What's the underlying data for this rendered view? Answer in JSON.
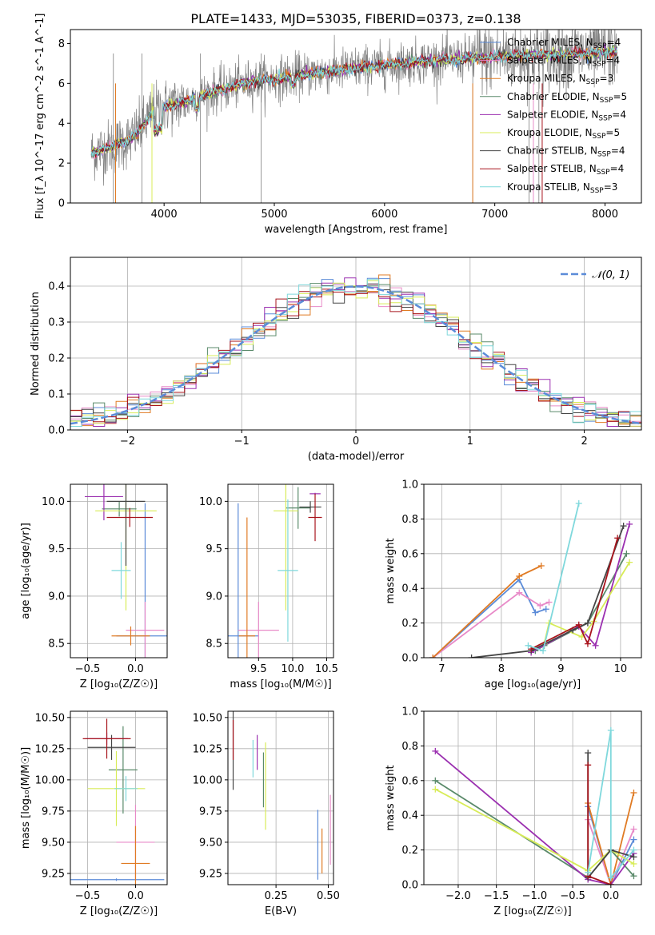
{
  "figure": {
    "title": "PLATE=1433, MJD=53035, FIBERID=0373, z=0.138"
  },
  "colors": {
    "data": "#808080",
    "grid": "#b0b0b0"
  },
  "series_legend": [
    {
      "base": "Chabrier MILES, N",
      "sub": "SSP",
      "tail": "=4",
      "color": "#5b8bd8"
    },
    {
      "base": "Salpeter MILES, N",
      "sub": "SSP",
      "tail": "=4",
      "color": "#e88ac8"
    },
    {
      "base": "Kroupa MILES, N",
      "sub": "SSP",
      "tail": "=3",
      "color": "#e07b24"
    },
    {
      "base": "Chabrier ELODIE, N",
      "sub": "SSP",
      "tail": "=5",
      "color": "#5a8a6a"
    },
    {
      "base": "Salpeter ELODIE, N",
      "sub": "SSP",
      "tail": "=4",
      "color": "#9b30b0"
    },
    {
      "base": "Kroupa ELODIE, N",
      "sub": "SSP",
      "tail": "=5",
      "color": "#d8ec58"
    },
    {
      "base": "Chabrier STELIB, N",
      "sub": "SSP",
      "tail": "=4",
      "color": "#454545"
    },
    {
      "base": "Salpeter STELIB, N",
      "sub": "SSP",
      "tail": "=4",
      "color": "#a8141c"
    },
    {
      "base": "Kroupa STELIB, N",
      "sub": "SSP",
      "tail": "=3",
      "color": "#7fd8dc"
    }
  ],
  "chart_data": [
    {
      "id": "spectrum",
      "type": "line",
      "title": "PLATE=1433, MJD=53035, FIBERID=0373, z=0.138",
      "xlabel": "wavelength [Angstrom, rest frame]",
      "ylabel": "Flux [f_λ 10^-17 erg cm^-2 s^-1 A^-1]",
      "xlim": [
        3150,
        8330
      ],
      "ylim": [
        0,
        8.7
      ],
      "xticks": [
        4000,
        5000,
        6000,
        7000,
        8000
      ],
      "yticks": [
        0,
        2,
        4,
        6,
        8
      ],
      "continuum": {
        "x": [
          3340,
          3450,
          3560,
          3700,
          3800,
          3900,
          4000,
          4200,
          4400,
          4600,
          4800,
          5000,
          5200,
          5500,
          5800,
          6000,
          6300,
          6600,
          6900,
          7200,
          7500,
          7800,
          8000,
          8100
        ],
        "y": [
          2.5,
          2.7,
          2.9,
          3.2,
          3.8,
          4.6,
          4.8,
          5.1,
          5.5,
          5.8,
          6.1,
          6.2,
          6.4,
          6.6,
          6.8,
          6.9,
          7.1,
          7.2,
          7.3,
          7.4,
          7.45,
          7.5,
          7.55,
          7.6
        ]
      },
      "grid": false,
      "legend": "upper right"
    },
    {
      "id": "residuals",
      "type": "histogram",
      "xlabel": "(data-model)/error",
      "ylabel": "Normed distribution",
      "xlim": [
        -2.5,
        2.5
      ],
      "ylim": [
        0,
        0.48
      ],
      "xticks": [
        -2,
        -1,
        0,
        1,
        2
      ],
      "yticks": [
        0.0,
        0.1,
        0.2,
        0.3,
        0.4
      ],
      "bin_width": 0.1,
      "reference_curve": {
        "name": "𝒩(0, 1)",
        "mean": 0,
        "sigma": 1,
        "color": "#5b8bd8"
      },
      "grid": true,
      "legend": "upper right"
    },
    {
      "id": "age-vs-Z",
      "type": "errorbar",
      "xlabel": "Z [log₁₀(Z/Z☉)]",
      "ylabel": "age  [log₁₀(age/yr)]",
      "xlim": [
        -0.68,
        0.33
      ],
      "ylim": [
        8.35,
        10.18
      ],
      "xticks": [
        -0.5,
        0.0
      ],
      "yticks": [
        8.5,
        9.0,
        9.5,
        10.0
      ],
      "points": [
        {
          "x": 0.1,
          "xerr": 0.3,
          "y": 8.58,
          "yerr": 1.4,
          "color": "#5b8bd8"
        },
        {
          "x": 0.1,
          "xerr": 0.2,
          "y": 8.64,
          "yerr": 0.3,
          "color": "#e88ac8"
        },
        {
          "x": -0.05,
          "xerr": 0.2,
          "y": 8.58,
          "yerr": 0.1,
          "color": "#e07b24"
        },
        {
          "x": -0.17,
          "xerr": 0.18,
          "y": 9.92,
          "yerr": 0.08,
          "color": "#5a8a6a"
        },
        {
          "x": -0.33,
          "xerr": 0.2,
          "y": 10.05,
          "yerr": 0.25,
          "color": "#9b30b0"
        },
        {
          "x": -0.1,
          "xerr": 0.32,
          "y": 9.9,
          "yerr": 1.05,
          "color": "#d8ec58"
        },
        {
          "x": -0.1,
          "xerr": 0.2,
          "y": 10.0,
          "yerr": 0.68,
          "color": "#454545"
        },
        {
          "x": -0.06,
          "xerr": 0.24,
          "y": 9.83,
          "yerr": 0.1,
          "color": "#a8141c"
        },
        {
          "x": -0.15,
          "xerr": 0.1,
          "y": 9.27,
          "yerr": 0.3,
          "color": "#7fd8dc"
        }
      ],
      "grid": true
    },
    {
      "id": "age-vs-mass",
      "type": "errorbar",
      "xlabel": "mass [log₁₀(M/M☉)]",
      "ylabel": "",
      "xlim": [
        9.05,
        10.6
      ],
      "ylim": [
        8.35,
        10.18
      ],
      "xticks": [
        9.5,
        10.0,
        10.5
      ],
      "yticks": [
        8.5,
        9.0,
        9.5,
        10.0
      ],
      "points": [
        {
          "x": 9.2,
          "xerr": 0.3,
          "y": 8.58,
          "yerr": 1.4,
          "color": "#5b8bd8"
        },
        {
          "x": 9.5,
          "xerr": 0.3,
          "y": 8.64,
          "yerr": 0.3,
          "color": "#e88ac8"
        },
        {
          "x": 9.33,
          "xerr": 0.12,
          "y": 8.58,
          "yerr": 1.25,
          "color": "#e07b24"
        },
        {
          "x": 10.08,
          "xerr": 0.18,
          "y": 9.93,
          "yerr": 0.22,
          "color": "#5a8a6a"
        },
        {
          "x": 10.33,
          "xerr": 0.08,
          "y": 10.08,
          "yerr": 0.01,
          "color": "#9b30b0"
        },
        {
          "x": 9.9,
          "xerr": 0.18,
          "y": 9.9,
          "yerr": 1.05,
          "color": "#d8ec58"
        },
        {
          "x": 10.26,
          "xerr": 0.16,
          "y": 9.94,
          "yerr": 0.06,
          "color": "#454545"
        },
        {
          "x": 10.33,
          "xerr": 0.1,
          "y": 9.83,
          "yerr": 0.25,
          "color": "#a8141c"
        },
        {
          "x": 9.93,
          "xerr": 0.15,
          "y": 9.27,
          "yerr": 0.75,
          "color": "#7fd8dc"
        }
      ],
      "grid": true
    },
    {
      "id": "weight-vs-age",
      "type": "line",
      "xlabel": "age  [log₁₀(age/yr)]",
      "ylabel": "mass weight",
      "xlim": [
        6.7,
        10.35
      ],
      "ylim": [
        0,
        1.0
      ],
      "xticks": [
        7,
        8,
        9,
        10
      ],
      "yticks": [
        0.0,
        0.2,
        0.4,
        0.6,
        0.8,
        1.0
      ],
      "series": [
        {
          "color": "#5b8bd8",
          "x": [
            6.85,
            8.3,
            8.57,
            8.75
          ],
          "y": [
            0.0,
            0.45,
            0.26,
            0.28
          ]
        },
        {
          "color": "#e88ac8",
          "x": [
            6.85,
            8.3,
            8.65,
            8.8
          ],
          "y": [
            0.0,
            0.375,
            0.3,
            0.32
          ]
        },
        {
          "color": "#e07b24",
          "x": [
            6.85,
            8.3,
            8.67
          ],
          "y": [
            0.0,
            0.47,
            0.53
          ]
        },
        {
          "color": "#5a8a6a",
          "x": [
            8.57,
            8.72,
            9.45,
            10.1
          ],
          "y": [
            0.04,
            0.07,
            0.2,
            0.6
          ]
        },
        {
          "color": "#9b30b0",
          "x": [
            8.5,
            9.3,
            9.58,
            10.15
          ],
          "y": [
            0.03,
            0.18,
            0.07,
            0.77
          ]
        },
        {
          "color": "#d8ec58",
          "x": [
            8.72,
            8.8,
            9.35,
            9.55,
            10.15
          ],
          "y": [
            0.08,
            0.2,
            0.12,
            0.21,
            0.55
          ]
        },
        {
          "color": "#454545",
          "x": [
            7.5,
            8.5,
            9.2,
            9.45,
            10.05
          ],
          "y": [
            0.0,
            0.04,
            0.16,
            0.2,
            0.76
          ]
        },
        {
          "color": "#a8141c",
          "x": [
            8.5,
            9.3,
            9.45,
            9.95
          ],
          "y": [
            0.05,
            0.19,
            0.08,
            0.69
          ]
        },
        {
          "color": "#7fd8dc",
          "x": [
            8.45,
            8.7,
            9.3
          ],
          "y": [
            0.07,
            0.04,
            0.89
          ]
        }
      ],
      "grid": true
    },
    {
      "id": "mass-vs-Z",
      "type": "errorbar",
      "xlabel": "Z [log₁₀(Z/Z☉)]",
      "ylabel": "mass [log₁₀(M/M☉)]",
      "xlim": [
        -0.68,
        0.33
      ],
      "ylim": [
        9.16,
        10.55
      ],
      "xticks": [
        -0.5,
        0.0
      ],
      "yticks": [
        9.25,
        9.5,
        9.75,
        10.0,
        10.25,
        10.5
      ],
      "points": [
        {
          "x": -0.2,
          "xerr": 0.5,
          "y": 9.2,
          "yerr": 0.01,
          "color": "#5b8bd8"
        },
        {
          "x": 0.0,
          "xerr": 0.2,
          "y": 9.5,
          "yerr": 0.3,
          "color": "#e88ac8"
        },
        {
          "x": 0.0,
          "xerr": 0.15,
          "y": 9.33,
          "yerr": 0.3,
          "color": "#e07b24"
        },
        {
          "x": -0.13,
          "xerr": 0.15,
          "y": 10.08,
          "yerr": 0.35,
          "color": "#5a8a6a"
        },
        {
          "x": -0.3,
          "xerr": 0.22,
          "y": 10.33,
          "yerr": 0.05,
          "color": "#9b30b0"
        },
        {
          "x": -0.2,
          "xerr": 0.3,
          "y": 9.93,
          "yerr": 0.3,
          "color": "#d8ec58"
        },
        {
          "x": -0.25,
          "xerr": 0.25,
          "y": 10.26,
          "yerr": 0.1,
          "color": "#454545"
        },
        {
          "x": -0.3,
          "xerr": 0.25,
          "y": 10.33,
          "yerr": 0.16,
          "color": "#a8141c"
        },
        {
          "x": -0.1,
          "xerr": 0.12,
          "y": 9.93,
          "yerr": 0.1,
          "color": "#7fd8dc"
        }
      ],
      "grid": true
    },
    {
      "id": "mass-vs-EBV",
      "type": "errorbar",
      "xlabel": "E(B-V)",
      "ylabel": "",
      "xlim": [
        0.02,
        0.525
      ],
      "ylim": [
        9.16,
        10.55
      ],
      "xticks": [
        0.25,
        0.5
      ],
      "yticks": [
        9.25,
        9.5,
        9.75,
        10.0,
        10.25,
        10.5
      ],
      "points": [
        {
          "x": 0.45,
          "xerr": 0.0,
          "y": 9.48,
          "yerr": 0.28,
          "color": "#5b8bd8"
        },
        {
          "x": 0.51,
          "xerr": 0.0,
          "y": 9.6,
          "yerr": 0.28,
          "color": "#e88ac8"
        },
        {
          "x": 0.47,
          "xerr": 0.0,
          "y": 9.43,
          "yerr": 0.18,
          "color": "#e07b24"
        },
        {
          "x": 0.19,
          "xerr": 0.0,
          "y": 10.0,
          "yerr": 0.22,
          "color": "#5a8a6a"
        },
        {
          "x": 0.16,
          "xerr": 0.0,
          "y": 10.22,
          "yerr": 0.14,
          "color": "#9b30b0"
        },
        {
          "x": 0.2,
          "xerr": 0.0,
          "y": 9.95,
          "yerr": 0.35,
          "color": "#d8ec58"
        },
        {
          "x": 0.045,
          "xerr": 0.0,
          "y": 10.25,
          "yerr": 0.33,
          "color": "#454545"
        },
        {
          "x": 0.045,
          "xerr": 0.0,
          "y": 10.32,
          "yerr": 0.16,
          "color": "#a8141c"
        },
        {
          "x": 0.14,
          "xerr": 0.0,
          "y": 10.17,
          "yerr": 0.15,
          "color": "#7fd8dc"
        }
      ],
      "grid": true
    },
    {
      "id": "weight-vs-Z",
      "type": "line",
      "xlabel": "Z [log₁₀(Z/Z☉)]",
      "ylabel": "mass weight",
      "xlim": [
        -2.45,
        0.4
      ],
      "ylim": [
        0,
        1.0
      ],
      "xticks": [
        -2.0,
        -1.5,
        -1.0,
        -0.5,
        0.0
      ],
      "yticks": [
        0.0,
        0.2,
        0.4,
        0.6,
        0.8,
        1.0
      ],
      "series": [
        {
          "color": "#5b8bd8",
          "x": [
            -0.3,
            0.0,
            0.3
          ],
          "y": [
            0.45,
            0.0,
            0.26
          ]
        },
        {
          "color": "#e88ac8",
          "x": [
            -0.3,
            0.0,
            0.3
          ],
          "y": [
            0.375,
            0.0,
            0.32
          ]
        },
        {
          "color": "#e07b24",
          "x": [
            -0.3,
            0.0,
            0.3
          ],
          "y": [
            0.47,
            0.0,
            0.53
          ]
        },
        {
          "color": "#5a8a6a",
          "x": [
            -2.3,
            -0.3,
            0.0,
            0.3
          ],
          "y": [
            0.6,
            0.04,
            0.2,
            0.05
          ]
        },
        {
          "color": "#9b30b0",
          "x": [
            -2.3,
            -0.3,
            0.0,
            0.3
          ],
          "y": [
            0.77,
            0.03,
            0.0,
            0.18
          ]
        },
        {
          "color": "#d8ec58",
          "x": [
            -2.3,
            -0.3,
            0.0,
            0.3
          ],
          "y": [
            0.55,
            0.08,
            0.2,
            0.12
          ]
        },
        {
          "color": "#454545",
          "x": [
            -0.3,
            -0.3,
            0.0,
            0.3
          ],
          "y": [
            0.76,
            0.04,
            0.2,
            0.16
          ]
        },
        {
          "color": "#a8141c",
          "x": [
            -0.3,
            -0.3,
            0.0
          ],
          "y": [
            0.69,
            0.05,
            0.0
          ]
        },
        {
          "color": "#7fd8dc",
          "x": [
            -0.3,
            0.0,
            0.0,
            0.3
          ],
          "y": [
            0.07,
            0.89,
            0.04,
            0.2
          ]
        }
      ],
      "grid": true
    }
  ]
}
